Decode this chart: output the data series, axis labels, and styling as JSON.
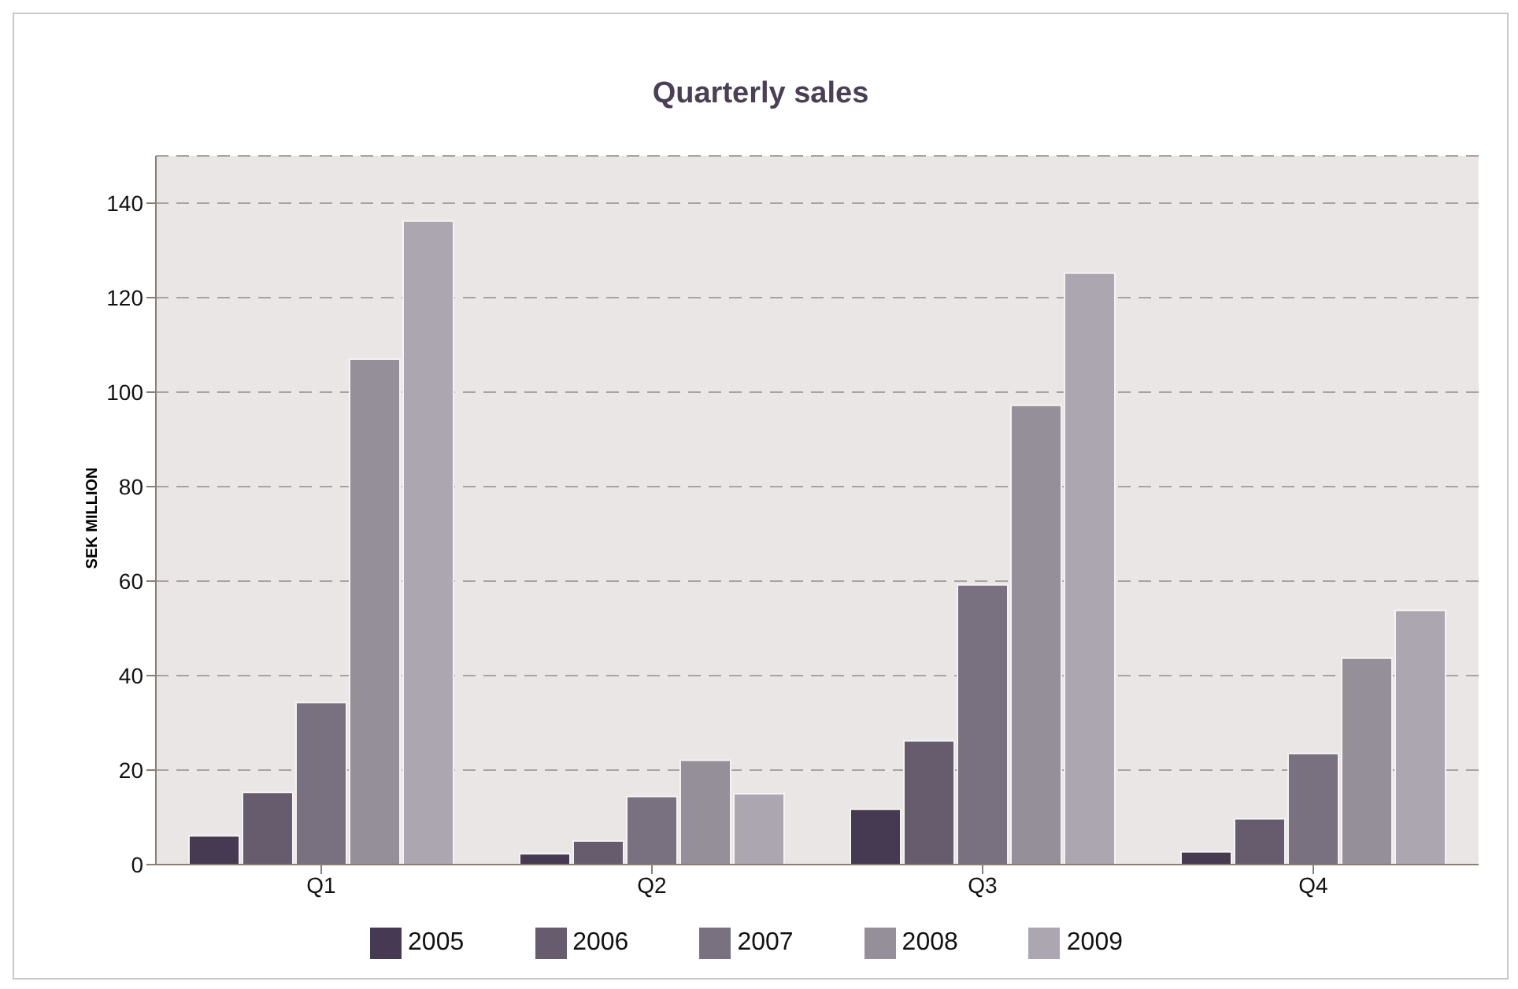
{
  "chart_data": {
    "type": "bar",
    "title": "Quarterly sales",
    "ylabel": "SEK MILLION",
    "categories": [
      "Q1",
      "Q2",
      "Q3",
      "Q4"
    ],
    "series": [
      {
        "name": "2005",
        "color": "#463a52",
        "values": [
          6.1,
          2.3,
          11.7,
          2.7
        ]
      },
      {
        "name": "2006",
        "color": "#665c6e",
        "values": [
          15.3,
          5.0,
          26.2,
          9.7
        ]
      },
      {
        "name": "2007",
        "color": "#7a7180",
        "values": [
          34.3,
          14.4,
          59.2,
          23.5
        ]
      },
      {
        "name": "2008",
        "color": "#958f99",
        "values": [
          107,
          22.1,
          97.2,
          43.7
        ]
      },
      {
        "name": "2009",
        "color": "#aca6b1",
        "values": [
          136.2,
          15.0,
          125.2,
          53.8
        ]
      }
    ],
    "ylim": [
      0,
      150
    ],
    "yticks": [
      0,
      20,
      40,
      60,
      80,
      100,
      120,
      140
    ],
    "grid": "y",
    "legend": "bottom"
  }
}
